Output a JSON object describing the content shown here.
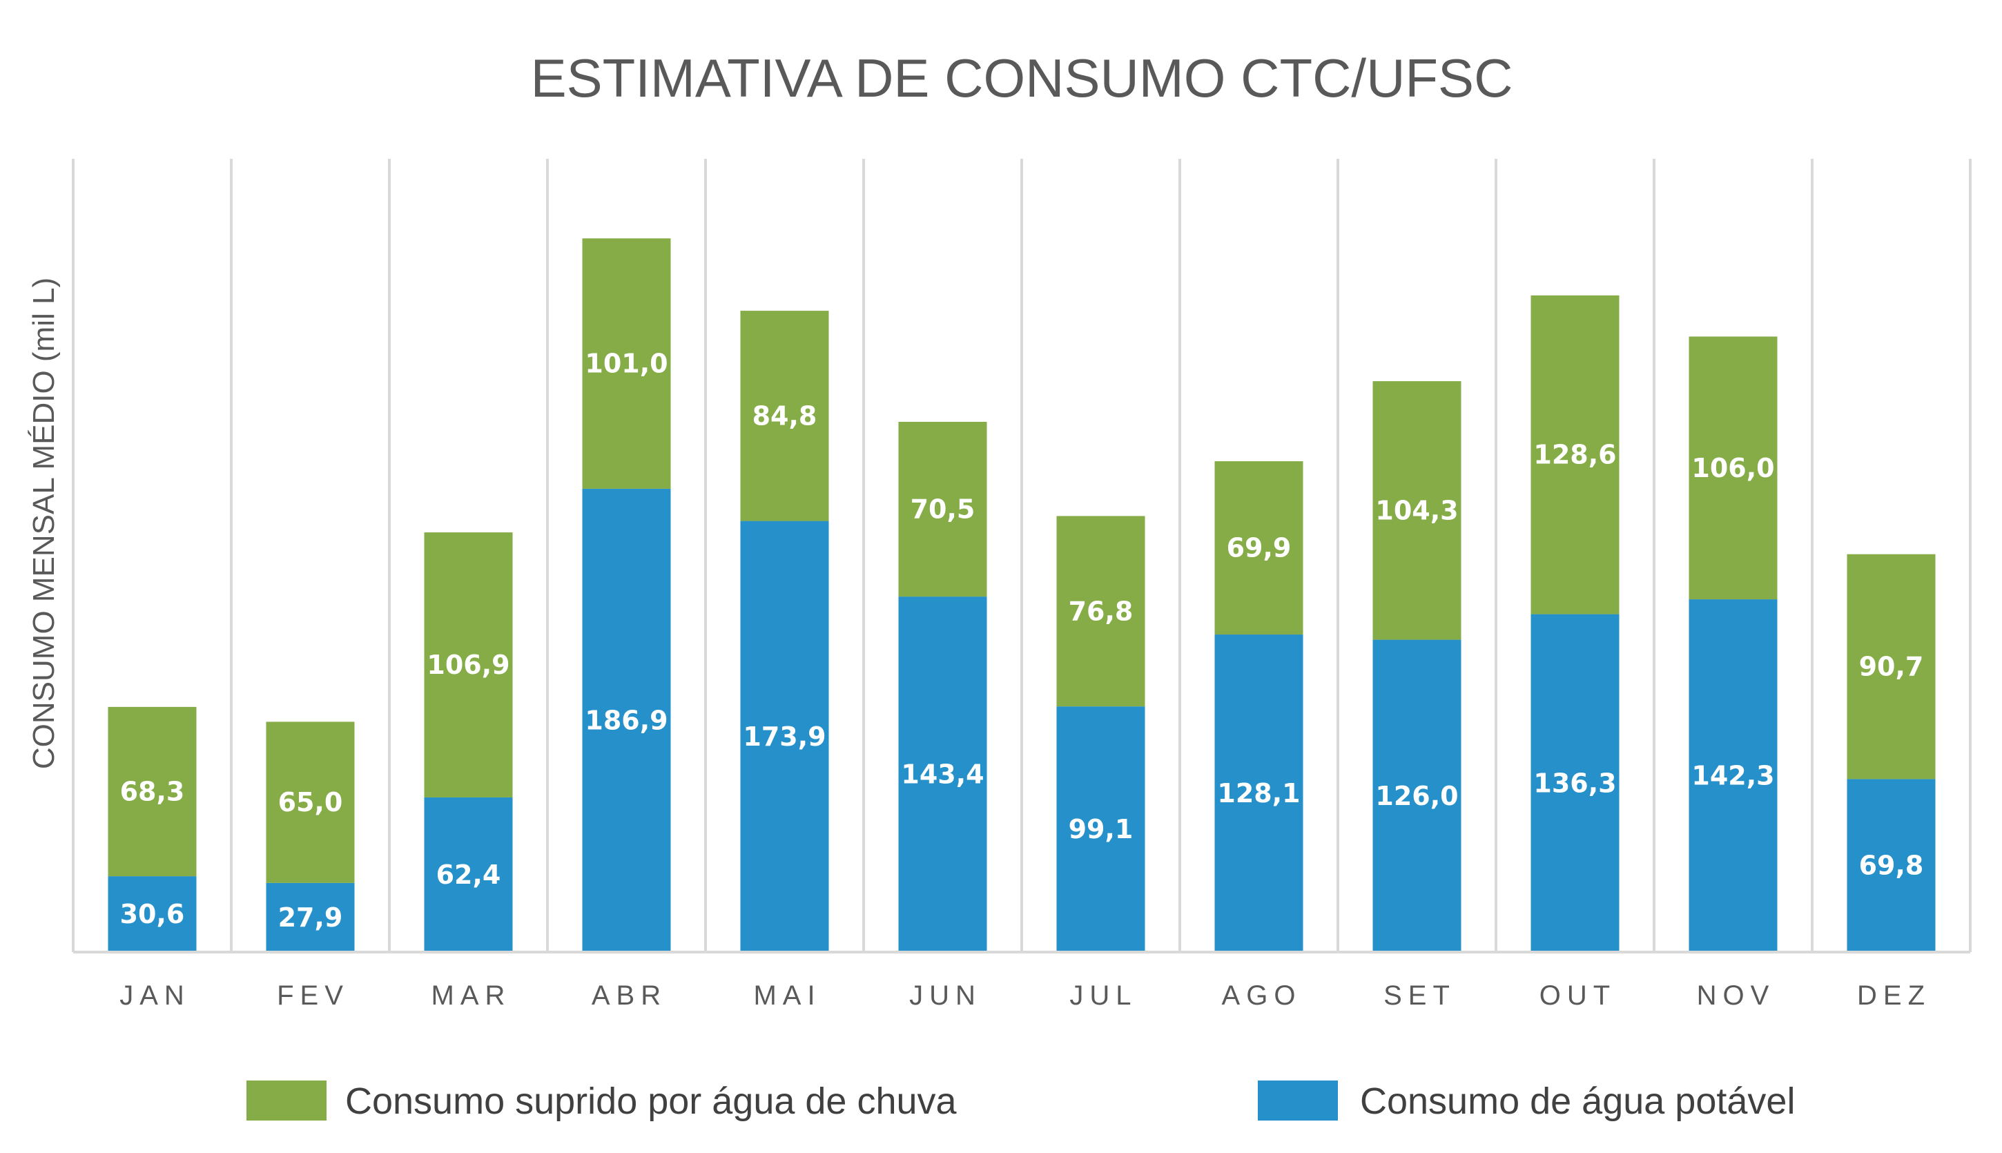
{
  "chart_data": {
    "type": "bar",
    "stacked": true,
    "title": "ESTIMATIVA DE CONSUMO CTC/UFSC",
    "xlabel": "",
    "ylabel": "CONSUMO MENSAL MÉDIO (mil L)",
    "categories": [
      "JAN",
      "FEV",
      "MAR",
      "ABR",
      "MAI",
      "JUN",
      "JUL",
      "AGO",
      "SET",
      "OUT",
      "NOV",
      "DEZ"
    ],
    "series": [
      {
        "name": "Consumo de água potável",
        "color": "#2590ca",
        "values": [
          30.6,
          27.9,
          62.4,
          186.9,
          173.9,
          143.4,
          99.1,
          128.1,
          126.0,
          136.3,
          142.3,
          69.8
        ],
        "labels": [
          "30,6",
          "27,9",
          "62,4",
          "186,9",
          "173,9",
          "143,4",
          "99,1",
          "128,1",
          "126,0",
          "136,3",
          "142,3",
          "69,8"
        ]
      },
      {
        "name": "Consumo suprido por água de chuva",
        "color": "#86ac48",
        "values": [
          68.3,
          65.0,
          106.9,
          101.0,
          84.8,
          70.5,
          76.8,
          69.9,
          104.3,
          128.6,
          106.0,
          90.7
        ],
        "labels": [
          "68,3",
          "65,0",
          "106,9",
          "101,0",
          "84,8",
          "70,5",
          "76,8",
          "69,9",
          "104,3",
          "128,6",
          "106,0",
          "90,7"
        ]
      }
    ],
    "ylim": [
      0,
      320
    ],
    "y_ticks_shown": false,
    "grid": "vertical category separators",
    "legend": {
      "placement": "bottom",
      "order": [
        "Consumo suprido por água de chuva",
        "Consumo de água potável"
      ]
    }
  }
}
